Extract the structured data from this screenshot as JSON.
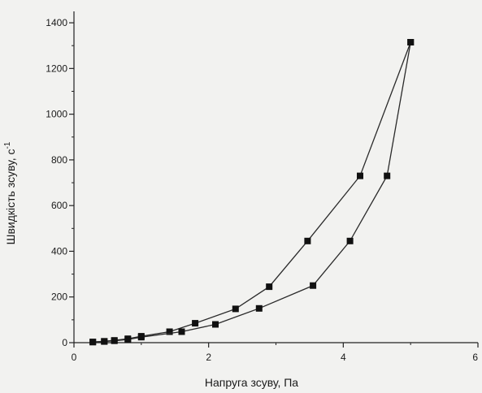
{
  "chart_data": {
    "type": "line",
    "xlabel": "Напруга зсуву, Па",
    "ylabel": "Швидкість зсуву, с",
    "ylabel_superscript": "-1",
    "xlim": [
      0,
      6
    ],
    "ylim": [
      0,
      1450
    ],
    "x_ticks": [
      "0",
      "2",
      "4",
      "6"
    ],
    "y_ticks": [
      "0",
      "200",
      "400",
      "600",
      "800",
      "1000",
      "1200",
      "1400"
    ],
    "grid": false,
    "legend": "none",
    "colors": {
      "line": "#2a2a2a",
      "marker": "#111111",
      "axis": "#222222"
    },
    "series": [
      {
        "points": [
          [
            0.28,
            3
          ],
          [
            0.45,
            6
          ],
          [
            0.6,
            10
          ],
          [
            0.8,
            17
          ],
          [
            1.0,
            28
          ],
          [
            1.42,
            48
          ],
          [
            1.8,
            85
          ],
          [
            2.4,
            148
          ],
          [
            2.9,
            245
          ],
          [
            3.47,
            445
          ],
          [
            4.25,
            730
          ],
          [
            5.0,
            1315
          ]
        ]
      },
      {
        "points": [
          [
            0.28,
            3
          ],
          [
            0.45,
            5
          ],
          [
            0.6,
            8
          ],
          [
            0.8,
            14
          ],
          [
            1.0,
            24
          ],
          [
            1.6,
            48
          ],
          [
            2.1,
            80
          ],
          [
            2.75,
            150
          ],
          [
            3.55,
            250
          ],
          [
            4.1,
            445
          ],
          [
            4.65,
            730
          ],
          [
            5.0,
            1315
          ]
        ]
      }
    ]
  }
}
